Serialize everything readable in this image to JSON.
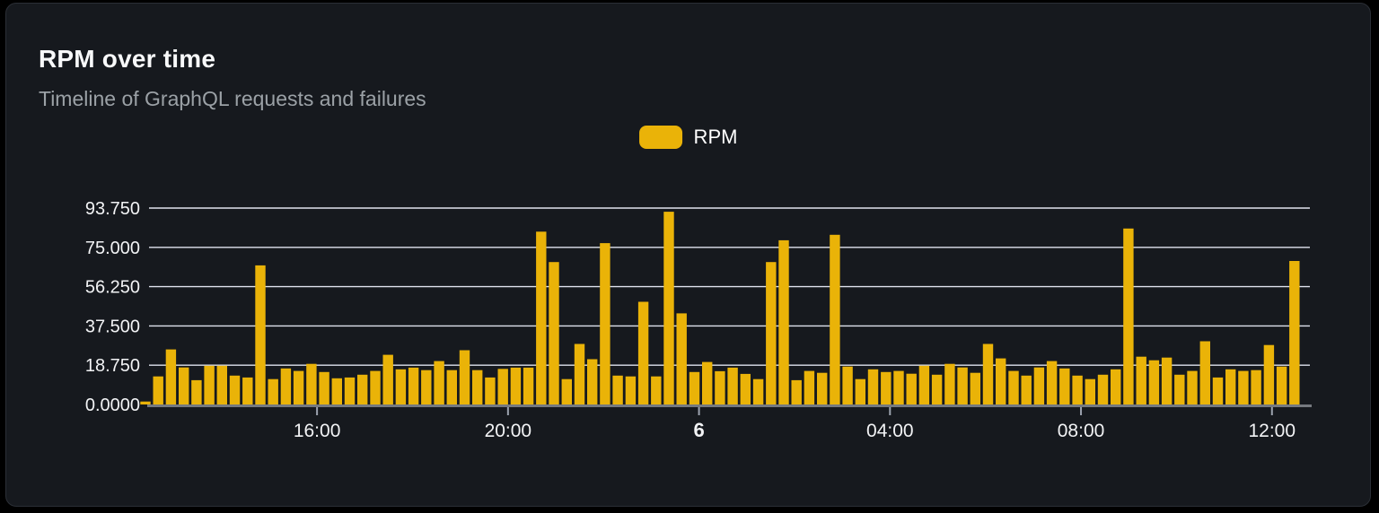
{
  "card": {
    "title": "RPM over time",
    "subtitle": "Timeline of GraphQL requests and failures"
  },
  "legend": {
    "label": "RPM",
    "position": "top-center"
  },
  "colors": {
    "page_bg": "#000000",
    "card_bg": "#16191e",
    "card_border": "#2b2f36",
    "title_text": "#f8f9fa",
    "subtitle_text": "#9ba1a6",
    "bar": "#eab308",
    "grid": "#e0e3ee",
    "axis": "#75797f",
    "tick": "#9ca3af",
    "axis_text": "#f2f3f5"
  },
  "chart_data": {
    "type": "bar",
    "title": "RPM over time",
    "series_name": "RPM",
    "xlabel": "",
    "ylabel": "",
    "ylim": [
      0,
      93.75
    ],
    "grid": "horizontal-only",
    "legend_position": "top-center",
    "y_ticks": [
      {
        "label": "0.0000",
        "value": 0
      },
      {
        "label": "18.750",
        "value": 18.75
      },
      {
        "label": "37.500",
        "value": 37.5
      },
      {
        "label": "56.250",
        "value": 56.25
      },
      {
        "label": "75.000",
        "value": 75
      },
      {
        "label": "93.750",
        "value": 93.75
      }
    ],
    "x_ticks": [
      {
        "label": "16:00",
        "pos": 13.44,
        "bold": false
      },
      {
        "label": "20:00",
        "pos": 28.4,
        "bold": false
      },
      {
        "label": "6",
        "pos": 43.36,
        "bold": true
      },
      {
        "label": "04:00",
        "pos": 58.32,
        "bold": false
      },
      {
        "label": "08:00",
        "pos": 73.28,
        "bold": false
      },
      {
        "label": "12:00",
        "pos": 88.24,
        "bold": false
      }
    ],
    "values": [
      1.4,
      13.4,
      26.3,
      17.7,
      11.6,
      18.5,
      18.5,
      13.8,
      12.9,
      66.4,
      12.1,
      17.2,
      16.0,
      19.4,
      15.5,
      12.5,
      12.9,
      14.2,
      16.0,
      23.7,
      16.8,
      17.6,
      16.4,
      20.7,
      16.4,
      25.9,
      16.4,
      12.9,
      17.0,
      17.6,
      17.6,
      82.5,
      68.0,
      12.1,
      28.9,
      21.6,
      77.0,
      13.8,
      13.4,
      49.0,
      13.4,
      92.0,
      43.5,
      15.5,
      20.3,
      15.9,
      17.6,
      14.6,
      12.1,
      68.0,
      78.4,
      11.6,
      16.0,
      15.1,
      81.0,
      18.1,
      12.1,
      16.8,
      15.5,
      16.0,
      14.7,
      18.5,
      14.2,
      19.4,
      17.7,
      15.1,
      28.9,
      22.0,
      16.0,
      13.8,
      17.7,
      20.7,
      17.2,
      13.8,
      12.1,
      14.2,
      16.8,
      84.0,
      22.8,
      21.1,
      22.4,
      14.2,
      16.0,
      30.2,
      12.9,
      16.8,
      16.0,
      16.4,
      28.4,
      18.1,
      68.5
    ]
  }
}
